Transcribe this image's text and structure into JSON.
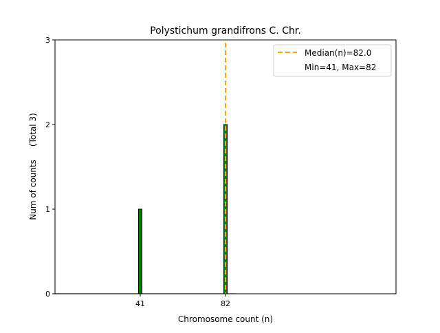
{
  "chart_data": {
    "type": "bar",
    "title": "Polystichum grandifrons C. Chr.",
    "xlabel": "Chromosome count (n)",
    "ylabel": "Num of counts     (Total 3)",
    "xlim": [
      0,
      164
    ],
    "ylim": [
      0,
      3
    ],
    "xticks": [
      41,
      82
    ],
    "yticks": [
      0,
      1,
      2,
      3
    ],
    "bars": [
      {
        "x": 41,
        "value": 1,
        "color": "#008000"
      },
      {
        "x": 82,
        "value": 2,
        "color": "#008000"
      }
    ],
    "bar_width": 1.6,
    "median": {
      "value": 82.0,
      "color": "#FFA500",
      "label": "Median(n)=82.0"
    },
    "legend": {
      "placement": "top-right",
      "entries": [
        "Median(n)=82.0",
        "Min=41, Max=82"
      ]
    },
    "grid": false
  }
}
